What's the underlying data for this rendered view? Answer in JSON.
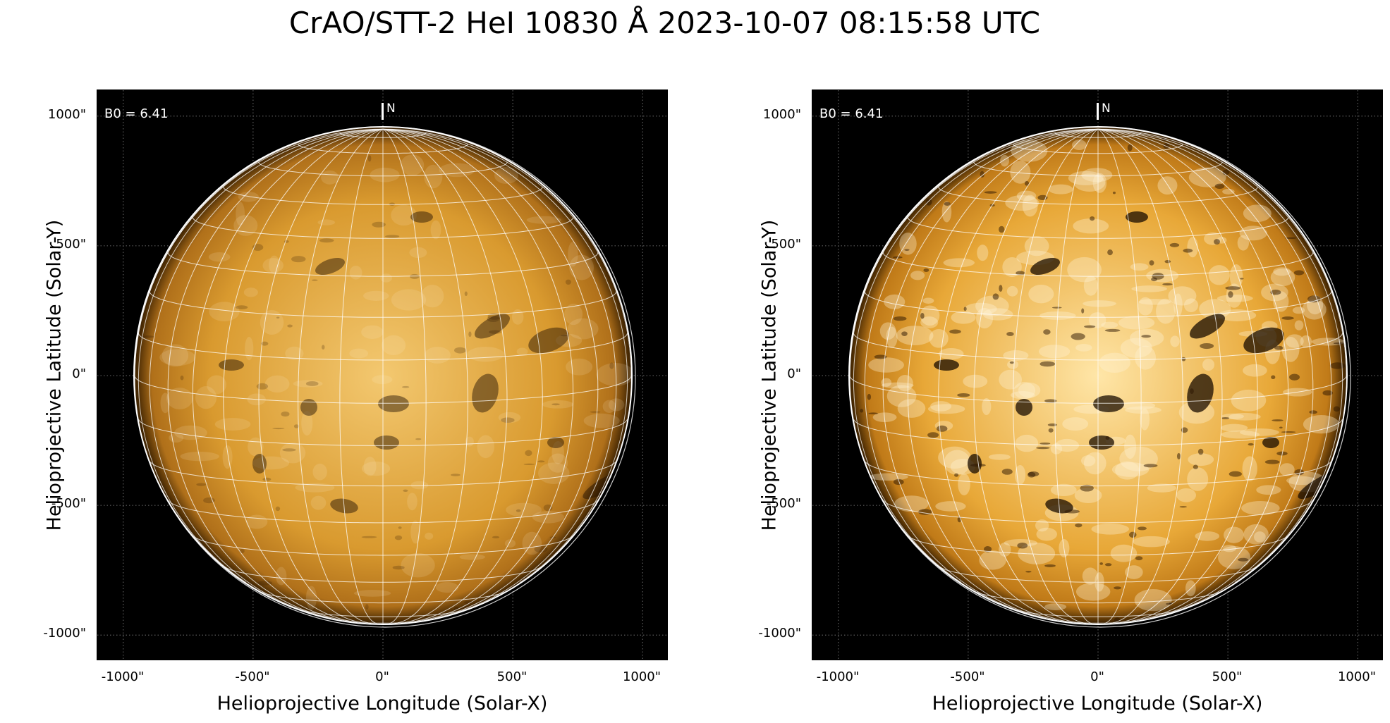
{
  "figure": {
    "title": "CrAO/STT-2 HeI 10830 Å 2023-10-07 08:15:58 UTC"
  },
  "panels": [
    {
      "id": "left",
      "annotation": "B0 = 6.41",
      "north_label": "N",
      "xlabel": "Helioprojective Longitude (Solar-X)",
      "ylabel": "Helioprojective Latitude (Solar-Y)",
      "x_ticks": [
        "-1000\"",
        "-500\"",
        "0\"",
        "500\"",
        "1000\""
      ],
      "y_ticks": [
        "1000\"",
        "500\"",
        "0\"",
        "-500\"",
        "-1000\""
      ],
      "tick_values": [
        -1000,
        -500,
        0,
        500,
        1000
      ],
      "range": [
        -1100,
        1100
      ],
      "b0_deg": 6.41,
      "colormap": "orange-heat",
      "contrast": "normal"
    },
    {
      "id": "right",
      "annotation": "B0 = 6.41",
      "north_label": "N",
      "xlabel": "Helioprojective Longitude (Solar-X)",
      "ylabel": "Helioprojective Latitude (Solar-Y)",
      "x_ticks": [
        "-1000\"",
        "-500\"",
        "0\"",
        "500\"",
        "1000\""
      ],
      "y_ticks": [
        "1000\"",
        "500\"",
        "0\"",
        "-500\"",
        "-1000\""
      ],
      "tick_values": [
        -1000,
        -500,
        0,
        500,
        1000
      ],
      "range": [
        -1100,
        1100
      ],
      "b0_deg": 6.41,
      "colormap": "orange-heat",
      "contrast": "enhanced"
    }
  ],
  "colors": {
    "disk_light": "#f3c870",
    "disk_mid": "#d99a2f",
    "disk_dark": "#b0701a",
    "limb_dark": "#3a2000",
    "background": "#000000",
    "grid": "#ffffff"
  }
}
